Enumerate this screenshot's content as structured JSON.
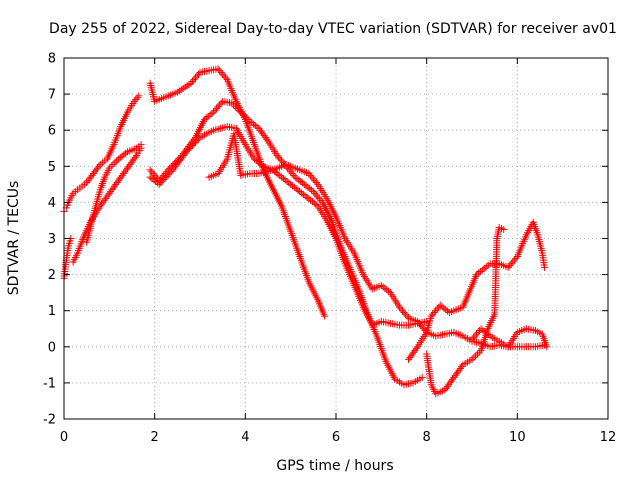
{
  "chart_data": {
    "type": "scatter",
    "title": "Day 255 of 2022, Sidereal Day-to-day VTEC variation (SDTVAR) for receiver av01",
    "xlabel": "GPS time / hours",
    "ylabel": "SDTVAR / TECUs",
    "xlim": [
      0,
      12
    ],
    "ylim": [
      -2,
      8
    ],
    "xticks": [
      0,
      2,
      4,
      6,
      8,
      10,
      12
    ],
    "yticks": [
      -2,
      -1,
      0,
      1,
      2,
      3,
      4,
      5,
      6,
      7,
      8
    ],
    "grid": true,
    "marker": "+",
    "color": "#ff0000",
    "series": [
      {
        "x": [
          0.0,
          0.05,
          0.1,
          0.2,
          0.35,
          0.5,
          0.65,
          0.8,
          0.95,
          1.1,
          1.25,
          1.4,
          1.55,
          1.65
        ],
        "values": [
          3.75,
          3.85,
          4.0,
          4.25,
          4.4,
          4.55,
          4.8,
          5.05,
          5.2,
          5.6,
          6.1,
          6.5,
          6.8,
          6.95
        ]
      },
      {
        "x": [
          0.0,
          0.05,
          0.1,
          0.15
        ],
        "values": [
          1.9,
          2.4,
          2.8,
          3.0
        ]
      },
      {
        "x": [
          0.2,
          0.3,
          0.45,
          0.6,
          0.8,
          1.0,
          1.2,
          1.4,
          1.6,
          1.7
        ],
        "values": [
          2.35,
          2.6,
          3.1,
          3.5,
          3.9,
          4.25,
          4.6,
          4.95,
          5.3,
          5.5
        ]
      },
      {
        "x": [
          0.5,
          0.6,
          0.7,
          0.8,
          0.9,
          1.0,
          1.2,
          1.4,
          1.6,
          1.7
        ],
        "values": [
          2.9,
          3.4,
          3.9,
          4.35,
          4.7,
          4.95,
          5.2,
          5.4,
          5.5,
          5.6
        ]
      },
      {
        "x": [
          1.9,
          2.0,
          2.2,
          2.5,
          2.8,
          3.0,
          3.2,
          3.4,
          3.6,
          3.8,
          4.0,
          4.2,
          4.4,
          4.6,
          4.8,
          5.0,
          5.2,
          5.4,
          5.6,
          5.75
        ],
        "values": [
          7.3,
          6.8,
          6.9,
          7.05,
          7.3,
          7.6,
          7.65,
          7.7,
          7.4,
          6.8,
          6.3,
          5.6,
          4.9,
          4.4,
          3.9,
          3.2,
          2.5,
          1.8,
          1.3,
          0.85
        ]
      },
      {
        "x": [
          1.9,
          2.1,
          2.3,
          2.6,
          2.9,
          3.1,
          3.3,
          3.5,
          3.7,
          3.9,
          4.1,
          4.3,
          4.5,
          4.7,
          4.9,
          5.1,
          5.3,
          5.5,
          5.7,
          5.9,
          6.1,
          6.3,
          6.5,
          6.7,
          6.9,
          7.1,
          7.3,
          7.5,
          7.7,
          7.9
        ],
        "values": [
          4.9,
          4.6,
          4.9,
          5.3,
          5.8,
          6.3,
          6.5,
          6.8,
          6.75,
          6.5,
          6.25,
          6.05,
          5.7,
          5.3,
          5.0,
          4.7,
          4.5,
          4.3,
          4.0,
          3.5,
          2.8,
          2.2,
          1.6,
          0.9,
          0.3,
          -0.4,
          -0.9,
          -1.05,
          -1.0,
          -0.85
        ]
      },
      {
        "x": [
          1.9,
          2.1,
          2.4,
          2.7,
          3.0,
          3.3,
          3.6,
          3.8,
          4.0,
          4.2,
          4.4,
          4.6,
          4.8,
          5.0,
          5.2,
          5.4,
          5.6,
          5.8,
          6.0,
          6.2,
          6.4,
          6.6,
          6.8,
          7.0,
          7.2,
          7.4,
          7.6,
          7.8,
          8.0
        ],
        "values": [
          4.7,
          4.5,
          4.9,
          5.4,
          5.8,
          6.0,
          6.1,
          6.05,
          5.6,
          5.2,
          5.0,
          4.9,
          4.7,
          4.5,
          4.3,
          4.1,
          3.9,
          3.5,
          3.0,
          2.3,
          1.7,
          1.1,
          0.6,
          0.7,
          0.65,
          0.6,
          0.6,
          0.65,
          0.7
        ]
      },
      {
        "x": [
          3.2,
          3.4,
          3.6,
          3.75,
          3.9,
          4.1,
          4.3,
          4.6,
          4.9,
          5.2,
          5.4,
          5.6,
          5.8,
          6.0,
          6.2,
          6.4,
          6.6,
          6.8,
          7.0,
          7.2,
          7.4,
          7.6,
          7.8,
          8.0,
          8.2,
          8.4,
          8.6,
          8.8,
          9.0,
          9.2,
          9.4,
          9.6,
          9.8,
          10.0,
          10.2,
          10.4,
          10.6
        ],
        "values": [
          4.7,
          4.8,
          5.2,
          5.9,
          4.75,
          4.8,
          4.8,
          4.9,
          5.05,
          4.9,
          4.8,
          4.5,
          4.1,
          3.6,
          3.0,
          2.6,
          2.0,
          1.6,
          1.7,
          1.5,
          1.1,
          0.8,
          0.7,
          0.4,
          0.3,
          0.35,
          0.4,
          0.3,
          0.15,
          0.1,
          0.0,
          0.05,
          0.0,
          0.0,
          0.0,
          0.0,
          0.05
        ]
      },
      {
        "x": [
          7.6,
          7.8,
          8.0,
          8.1,
          8.3,
          8.5,
          8.8,
          9.1,
          9.4,
          9.6,
          9.8,
          10.0,
          10.2,
          10.35,
          10.45,
          10.55,
          10.6
        ],
        "values": [
          -0.35,
          0.0,
          0.4,
          0.85,
          1.15,
          0.95,
          1.1,
          2.0,
          2.3,
          2.3,
          2.2,
          2.5,
          3.1,
          3.45,
          3.1,
          2.6,
          2.2
        ]
      },
      {
        "x": [
          8.0,
          8.1,
          8.2,
          8.4,
          8.6,
          8.8,
          9.0,
          9.2,
          9.35,
          9.5,
          9.55,
          9.6,
          9.7
        ],
        "values": [
          -0.2,
          -1.05,
          -1.3,
          -1.2,
          -0.85,
          -0.5,
          -0.35,
          -0.1,
          0.5,
          0.9,
          3.0,
          3.3,
          3.25
        ]
      },
      {
        "x": [
          9.0,
          9.2,
          9.4,
          9.6,
          9.8,
          10.0,
          10.2,
          10.4,
          10.55,
          10.65
        ],
        "values": [
          0.2,
          0.5,
          0.3,
          0.15,
          0.0,
          0.4,
          0.5,
          0.45,
          0.35,
          0.0
        ]
      }
    ]
  }
}
